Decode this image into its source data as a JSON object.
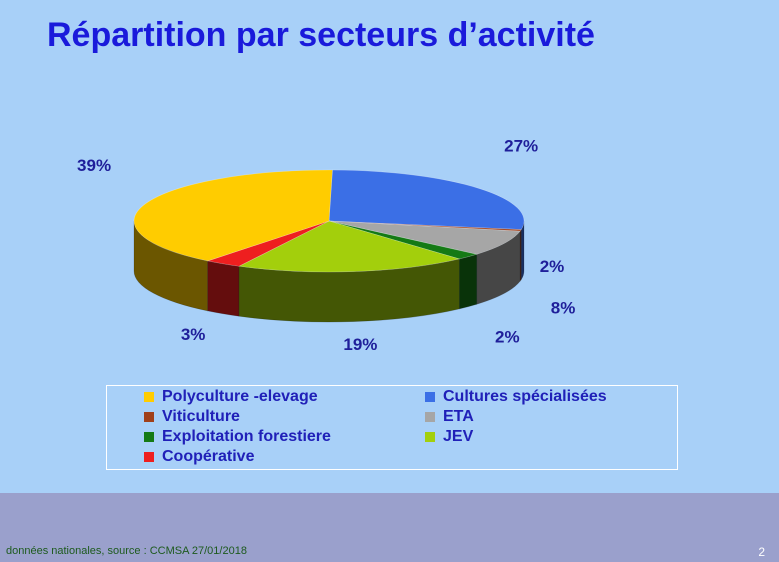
{
  "slide": {
    "title": "Répartition par secteurs d’activité",
    "footer_source": "données nationales, source : CCMSA 27/01/2018",
    "page_number": "2"
  },
  "chart_data": {
    "type": "pie",
    "title": "",
    "slices": [
      {
        "label": "Cultures spécialisées",
        "value": 27,
        "display": "27%",
        "color": "#3b6fe6"
      },
      {
        "label": "Viticulture",
        "value": 0.5,
        "display": "",
        "color": "#a0401a"
      },
      {
        "label": "ETA",
        "value": 8,
        "display": "8%",
        "color": "#a6a6a6"
      },
      {
        "label": "Exploitation forestiere",
        "value": 2,
        "display": "2%",
        "color": "#157a15"
      },
      {
        "label": "JEV",
        "value": 19,
        "display": "19%",
        "color": "#a3cf0c"
      },
      {
        "label": "Coopérative",
        "value": 3,
        "display": "3%",
        "color": "#ee1f1f"
      },
      {
        "label": "Polyculture -elevage",
        "value": 39,
        "display": "39%",
        "color": "#ffcc00"
      }
    ],
    "extra_labels": [
      "2%"
    ],
    "legend": [
      {
        "label": "Polyculture -elevage",
        "color": "#ffcc00"
      },
      {
        "label": "Cultures spécialisées",
        "color": "#3b6fe6"
      },
      {
        "label": "Viticulture",
        "color": "#a0401a"
      },
      {
        "label": "ETA",
        "color": "#a6a6a6"
      },
      {
        "label": "Exploitation forestiere",
        "color": "#157a15"
      },
      {
        "label": "JEV",
        "color": "#a3cf0c"
      },
      {
        "label": "Coopérative",
        "color": "#ee1f1f"
      }
    ],
    "legend_position": "bottom"
  }
}
